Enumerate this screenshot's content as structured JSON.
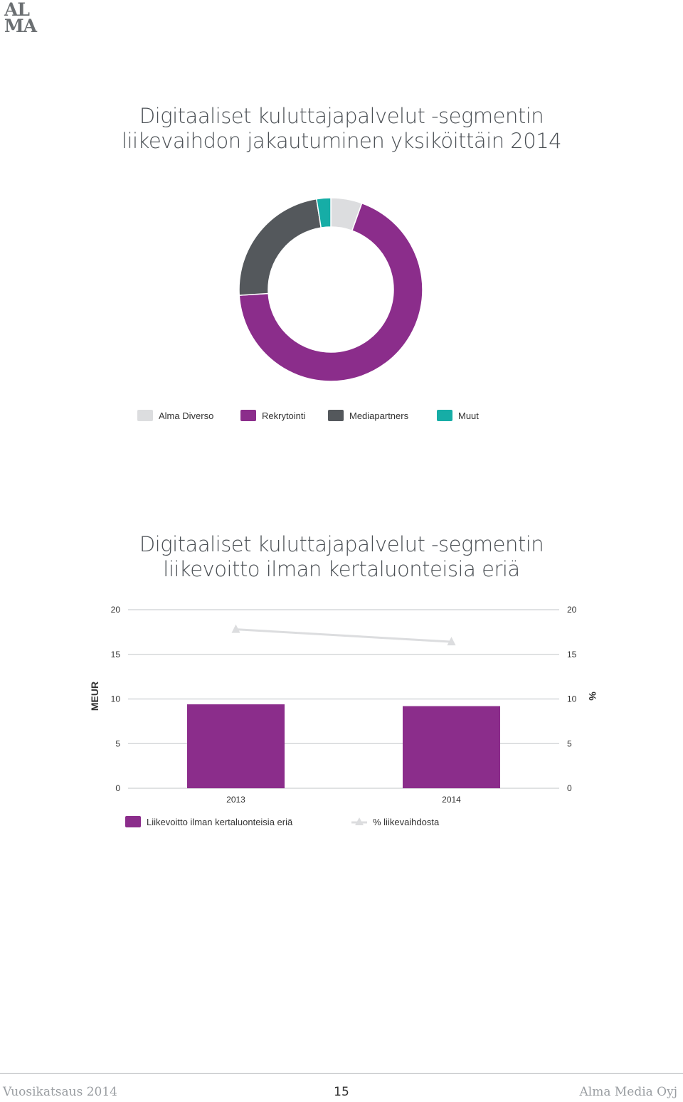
{
  "logo": {
    "line1": "AL",
    "line2": "MA"
  },
  "chart_data": [
    {
      "type": "pie",
      "donut": true,
      "title_lines": [
        "Digitaaliset kuluttajapalvelut -segmentin",
        "liikevaihdon jakautuminen yksiköittäin 2014"
      ],
      "slices": [
        {
          "name": "Alma Diverso",
          "value": 5.5,
          "color": "#dcdddf"
        },
        {
          "name": "Rekrytointi",
          "value": 68.5,
          "color": "#8b2d8b"
        },
        {
          "name": "Mediapartners",
          "value": 23.5,
          "color": "#54585c"
        },
        {
          "name": "Muut",
          "value": 2.5,
          "color": "#16ada6"
        }
      ],
      "legend_position": "bottom"
    },
    {
      "type": "bar",
      "title_lines": [
        "Digitaaliset kuluttajapalvelut -segmentin",
        "liikevoitto ilman kertaluonteisia eriä"
      ],
      "categories": [
        "2013",
        "2014"
      ],
      "series": [
        {
          "name": "Liikevoitto ilman kertaluonteisia eriä",
          "kind": "bar",
          "axis": "left",
          "values": [
            9.4,
            9.2
          ],
          "color": "#8b2d8b"
        },
        {
          "name": "% liikevaihdosta",
          "kind": "line",
          "axis": "right",
          "values": [
            17.8,
            16.4
          ],
          "color": "#dcdddf"
        }
      ],
      "ylabel": "MEUR",
      "y2label": "%",
      "ylim": [
        0,
        20
      ],
      "y2lim": [
        0,
        20
      ],
      "yticks": [
        "0",
        "5",
        "10",
        "15",
        "20"
      ],
      "y2ticks": [
        "0",
        "5",
        "10",
        "15",
        "20"
      ],
      "grid": true,
      "legend_position": "bottom"
    }
  ],
  "footer": {
    "left": "Vuosikatsaus 2014",
    "page": "15",
    "right": "Alma Media Oyj"
  }
}
